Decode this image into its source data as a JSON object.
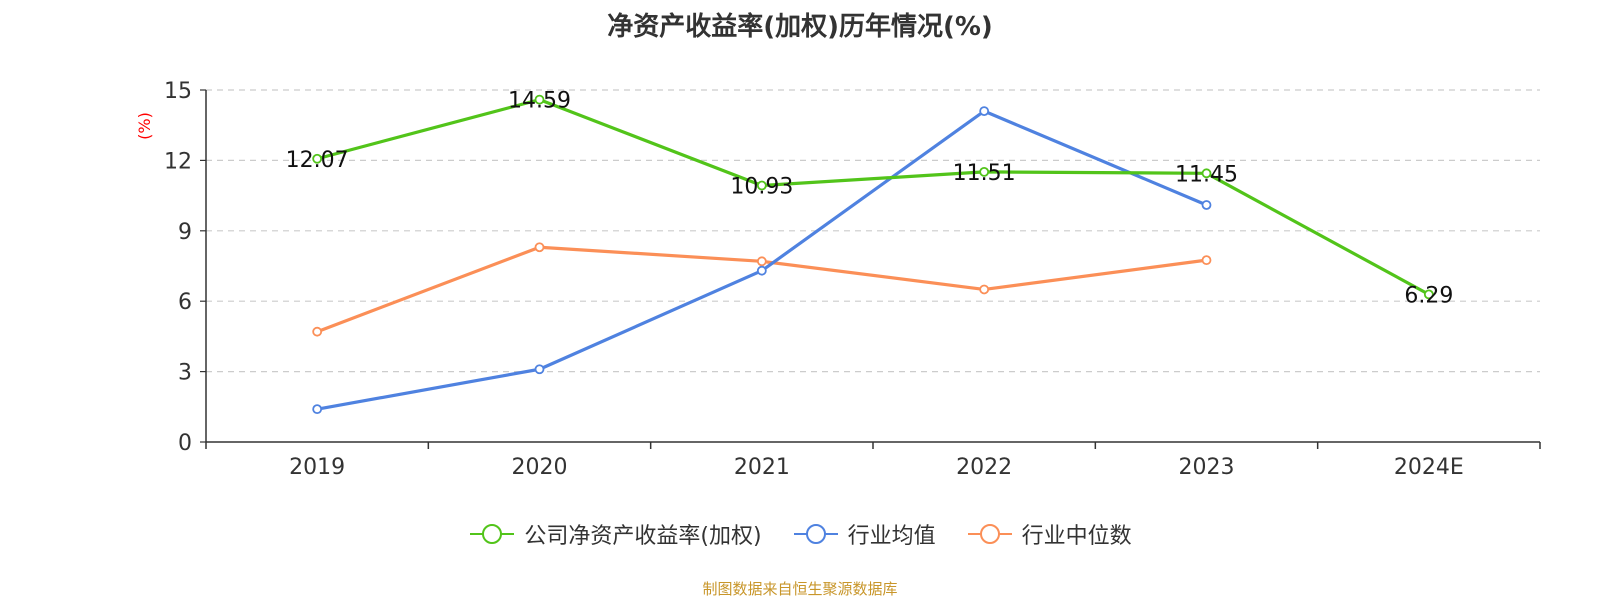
{
  "chart_data": {
    "type": "line",
    "title": "净资产收益率(加权)历年情况(%)",
    "ylabel": "(%)",
    "categories": [
      "2019",
      "2020",
      "2021",
      "2022",
      "2023",
      "2024E"
    ],
    "yticks": [
      "0",
      "3",
      "6",
      "9",
      "12",
      "15"
    ],
    "ylim": [
      0,
      15
    ],
    "grid": "horizontal dashed",
    "legend_position": "bottom",
    "series": [
      {
        "name": "公司净资产收益率(加权)",
        "color": "#52c41a",
        "values": [
          12.07,
          14.59,
          10.93,
          11.51,
          11.45,
          6.29
        ],
        "labels": [
          "12.07",
          "14.59",
          "10.93",
          "11.51",
          "11.45",
          "6.29"
        ]
      },
      {
        "name": "行业均值",
        "color": "#4f82e0",
        "values": [
          1.4,
          3.1,
          7.3,
          14.1,
          10.1,
          null
        ]
      },
      {
        "name": "行业中位数",
        "color": "#fb8f57",
        "values": [
          4.7,
          8.3,
          7.7,
          6.5,
          7.75,
          null
        ]
      }
    ],
    "source": "制图数据来自恒生聚源数据库"
  }
}
